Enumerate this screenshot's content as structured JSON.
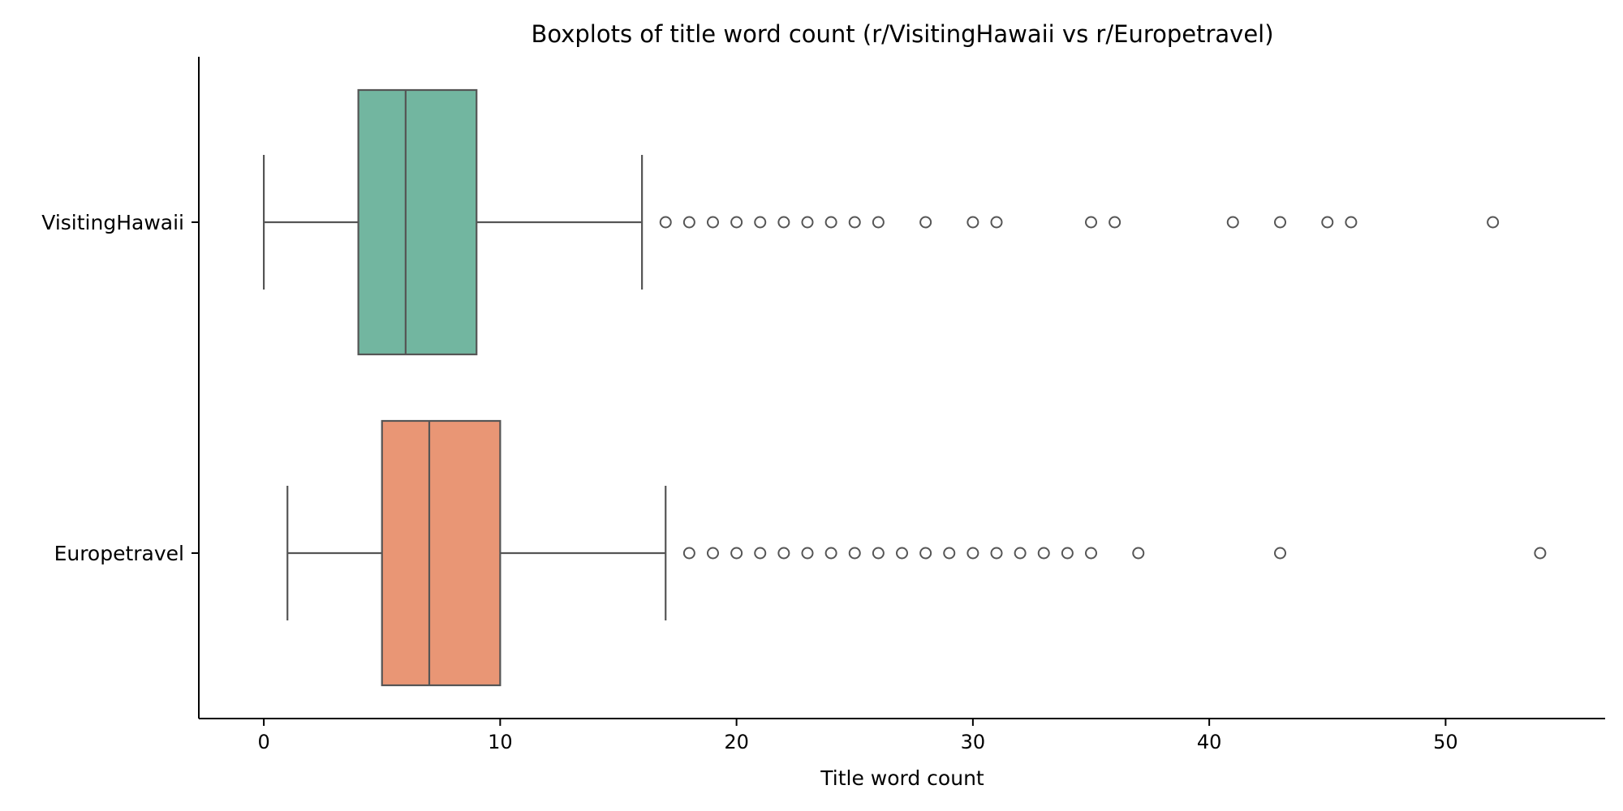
{
  "chart_data": {
    "type": "boxplot",
    "orientation": "horizontal",
    "title": "Boxplots of title word count (r/VisitingHawaii vs r/Europetravel)",
    "xlabel": "Title word count",
    "ylabel": "",
    "xlim": [
      -2.75,
      56.75
    ],
    "xticks": [
      0,
      10,
      20,
      30,
      40,
      50
    ],
    "grid": false,
    "legend": "none",
    "series": [
      {
        "name": "VisitingHawaii",
        "color": "#72b6a0",
        "stats": {
          "whisker_low": 0,
          "q1": 4,
          "median": 6,
          "q3": 9,
          "whisker_high": 16
        },
        "outliers": [
          17,
          18,
          19,
          20,
          21,
          22,
          23,
          24,
          25,
          26,
          28,
          30,
          31,
          35,
          36,
          41,
          43,
          45,
          46,
          52
        ]
      },
      {
        "name": "Europetravel",
        "color": "#e99675",
        "stats": {
          "whisker_low": 1,
          "q1": 5,
          "median": 7,
          "q3": 10,
          "whisker_high": 17
        },
        "outliers": [
          18,
          19,
          20,
          21,
          22,
          23,
          24,
          25,
          26,
          27,
          28,
          29,
          30,
          31,
          32,
          33,
          34,
          35,
          37,
          43,
          54
        ]
      }
    ],
    "colors": {
      "line": "#555555",
      "axis": "#000000"
    }
  }
}
